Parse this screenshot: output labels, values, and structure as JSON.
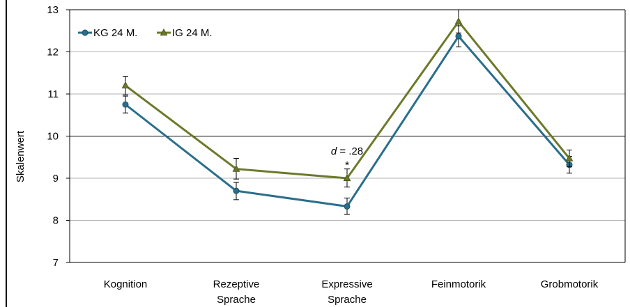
{
  "chart_data": {
    "type": "line",
    "ylabel": "Skalenwert",
    "ylim": [
      7,
      13
    ],
    "yticks": [
      "7",
      "8",
      "9",
      "10",
      "11",
      "12",
      "13"
    ],
    "categories": [
      [
        "Kognition"
      ],
      [
        "Rezeptive",
        "Sprache"
      ],
      [
        "Expressive",
        "Sprache"
      ],
      [
        "Feinmotorik"
      ],
      [
        "Grobmotorik"
      ]
    ],
    "series": [
      {
        "name": "KG 24 M.",
        "color": "#2a6e8c",
        "marker": "circle",
        "values": [
          10.75,
          8.7,
          8.33,
          12.37,
          9.32
        ],
        "err_low": [
          10.55,
          8.49,
          8.14,
          12.12,
          9.12
        ],
        "err_high": [
          10.95,
          8.9,
          8.53,
          12.62,
          9.52
        ]
      },
      {
        "name": "IG 24 M.",
        "color": "#6b7a2a",
        "marker": "triangle",
        "values": [
          11.2,
          9.22,
          9.0,
          12.72,
          9.47
        ],
        "err_low": [
          10.98,
          8.98,
          8.79,
          12.45,
          9.27
        ],
        "err_high": [
          11.42,
          9.47,
          9.22,
          13.0,
          9.67
        ]
      }
    ],
    "annotation": {
      "category_index": 2,
      "star": "*",
      "effect_label": "d",
      "effect_value": " = .28"
    },
    "grid": true,
    "legend": "top-left"
  }
}
